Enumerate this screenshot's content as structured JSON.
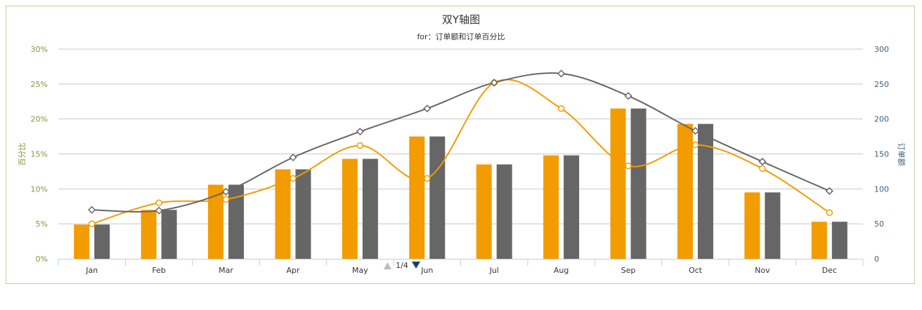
{
  "colors": {
    "orange": "#f29c00",
    "gray": "#666666",
    "frame": "#d7c897",
    "grid": "#c8c8c8",
    "left_axis_text": "#7f9a3a",
    "right_axis_text": "#3d5f7a",
    "pager_active": "#1d3f66",
    "pager_inactive": "#bbbbbb"
  },
  "pager": {
    "text": "1/4"
  },
  "chart_data": {
    "type": "bar",
    "title": "双Y轴图",
    "subtitle": "for：订单额和订单百分比",
    "categories": [
      "Jan",
      "Feb",
      "Mar",
      "Apr",
      "May",
      "Jun",
      "Jul",
      "Aug",
      "Sep",
      "Oct",
      "Nov",
      "Dec"
    ],
    "left_axis": {
      "title": "百分比",
      "ticks": [
        "0%",
        "5%",
        "10%",
        "15%",
        "20%",
        "25%",
        "30%"
      ],
      "range": [
        0,
        30
      ]
    },
    "right_axis": {
      "title": "订单额",
      "ticks": [
        "0",
        "50",
        "100",
        "150",
        "200",
        "250",
        "300"
      ],
      "range": [
        0,
        300
      ]
    },
    "grid": true,
    "series": [
      {
        "kind": "bar",
        "axis": "left",
        "color": "#f29c00",
        "values": [
          4.9,
          7.0,
          10.6,
          12.8,
          14.3,
          17.5,
          13.5,
          14.8,
          21.5,
          19.3,
          9.5,
          5.3
        ]
      },
      {
        "kind": "bar",
        "axis": "right",
        "color": "#666666",
        "values": [
          49,
          70,
          106,
          128,
          143,
          175,
          135,
          148,
          215,
          193,
          95,
          53
        ]
      },
      {
        "kind": "line",
        "axis": "left",
        "color": "#f29c00",
        "marker": "circle",
        "values": [
          5.0,
          8.0,
          8.5,
          11.5,
          16.2,
          11.5,
          25.2,
          21.5,
          13.3,
          16.3,
          12.9,
          6.6
        ]
      },
      {
        "kind": "line",
        "axis": "right",
        "color": "#666666",
        "marker": "diamond",
        "values": [
          70,
          69,
          96,
          145,
          182,
          215,
          252,
          265,
          233,
          183,
          139,
          97
        ]
      }
    ]
  }
}
